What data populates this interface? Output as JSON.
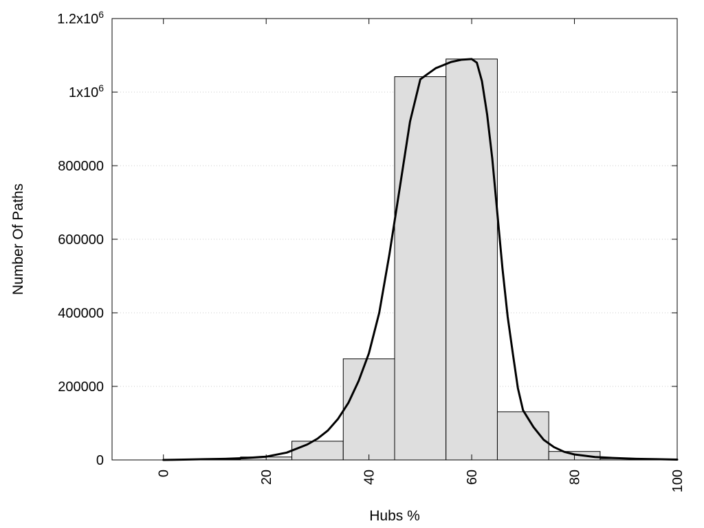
{
  "chart_data": {
    "type": "bar",
    "xlabel": "Hubs %",
    "ylabel": "Number Of Paths",
    "xlim": [
      -10,
      100
    ],
    "ylim": [
      0,
      1200000
    ],
    "grid": true,
    "x_ticks": [
      {
        "value": 0,
        "label": "0"
      },
      {
        "value": 20,
        "label": "20"
      },
      {
        "value": 40,
        "label": "40"
      },
      {
        "value": 60,
        "label": "60"
      },
      {
        "value": 80,
        "label": "80"
      },
      {
        "value": 100,
        "label": "100"
      }
    ],
    "y_ticks": [
      {
        "value": 0,
        "label": "0"
      },
      {
        "value": 200000,
        "label": "200000"
      },
      {
        "value": 400000,
        "label": "400000"
      },
      {
        "value": 600000,
        "label": "600000"
      },
      {
        "value": 800000,
        "label": "800000"
      },
      {
        "value": 1000000,
        "label": "1x10",
        "sup": "6"
      },
      {
        "value": 1200000,
        "label": "1.2x10",
        "sup": "6"
      }
    ],
    "bars": [
      {
        "x": 0,
        "value": 0
      },
      {
        "x": 10,
        "value": 1500
      },
      {
        "x": 20,
        "value": 8000
      },
      {
        "x": 30,
        "value": 51000
      },
      {
        "x": 40,
        "value": 275000
      },
      {
        "x": 50,
        "value": 1042000
      },
      {
        "x": 60,
        "value": 1090000
      },
      {
        "x": 70,
        "value": 131000
      },
      {
        "x": 80,
        "value": 23000
      },
      {
        "x": 90,
        "value": 3500
      }
    ],
    "bar_width": 10,
    "bar_color": "#dedede",
    "curve": {
      "x": [
        0,
        4,
        8,
        12,
        16,
        20,
        24,
        28,
        30,
        32,
        34,
        36,
        38,
        40,
        42,
        44,
        46,
        48,
        50,
        53,
        56,
        58,
        60,
        61,
        62,
        63,
        64,
        66,
        67,
        68,
        69,
        70,
        72,
        74,
        76,
        78,
        80,
        84,
        88,
        92,
        96,
        100
      ],
      "y": [
        0,
        1000,
        2000,
        3000,
        5000,
        9000,
        20000,
        42000,
        58000,
        80000,
        112000,
        155000,
        215000,
        290000,
        400000,
        560000,
        740000,
        920000,
        1035000,
        1065000,
        1082000,
        1088000,
        1090000,
        1080000,
        1030000,
        940000,
        820000,
        520000,
        390000,
        290000,
        195000,
        135000,
        90000,
        55000,
        35000,
        22000,
        15000,
        8000,
        5000,
        3000,
        2000,
        1000
      ]
    },
    "colors": {
      "bar_fill": "#dedede",
      "bar_stroke": "#000000",
      "curve": "#000000",
      "grid": "#c8c8c8"
    }
  }
}
